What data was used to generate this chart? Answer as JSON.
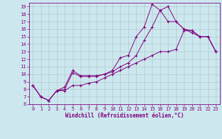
{
  "bg_color": "#cce8ee",
  "line_color": "#800080",
  "grid_color": "#b0c8d0",
  "xlabel": "Windchill (Refroidissement éolien,°C)",
  "xlim": [
    -0.5,
    23.5
  ],
  "ylim": [
    6,
    19.5
  ],
  "yticks": [
    6,
    7,
    8,
    9,
    10,
    11,
    12,
    13,
    14,
    15,
    16,
    17,
    18,
    19
  ],
  "xticks": [
    0,
    1,
    2,
    3,
    4,
    5,
    6,
    7,
    8,
    9,
    10,
    11,
    12,
    13,
    14,
    15,
    16,
    17,
    18,
    19,
    20,
    21,
    22,
    23
  ],
  "line1_x": [
    0,
    1,
    2,
    3,
    4,
    5,
    6,
    7,
    8,
    9,
    10,
    11,
    12,
    13,
    14,
    15,
    16,
    17,
    18,
    19,
    20,
    21,
    22,
    23
  ],
  "line1_y": [
    8.5,
    7.0,
    6.5,
    7.8,
    8.3,
    10.5,
    9.8,
    9.8,
    9.8,
    10.0,
    10.5,
    12.2,
    12.5,
    15.0,
    16.3,
    19.3,
    18.5,
    19.0,
    17.0,
    16.0,
    15.5,
    15.0,
    15.0,
    13.0
  ],
  "line2_x": [
    0,
    1,
    2,
    3,
    4,
    5,
    6,
    7,
    8,
    9,
    10,
    11,
    12,
    13,
    14,
    15,
    16,
    17,
    18,
    19,
    20,
    21,
    22,
    23
  ],
  "line2_y": [
    8.5,
    7.0,
    6.5,
    7.8,
    8.0,
    10.2,
    9.7,
    9.7,
    9.7,
    10.0,
    10.3,
    11.0,
    11.5,
    12.5,
    14.5,
    16.3,
    18.5,
    17.0,
    17.0,
    16.0,
    15.8,
    15.0,
    15.0,
    13.0
  ],
  "line3_x": [
    0,
    1,
    2,
    3,
    4,
    5,
    6,
    7,
    8,
    9,
    10,
    11,
    12,
    13,
    14,
    15,
    16,
    17,
    18,
    19,
    20,
    21,
    22,
    23
  ],
  "line3_y": [
    8.5,
    7.0,
    6.5,
    7.8,
    7.8,
    8.5,
    8.5,
    8.8,
    9.0,
    9.5,
    10.0,
    10.5,
    11.0,
    11.5,
    12.0,
    12.5,
    13.0,
    13.0,
    13.3,
    15.8,
    15.8,
    15.0,
    15.0,
    13.0
  ]
}
